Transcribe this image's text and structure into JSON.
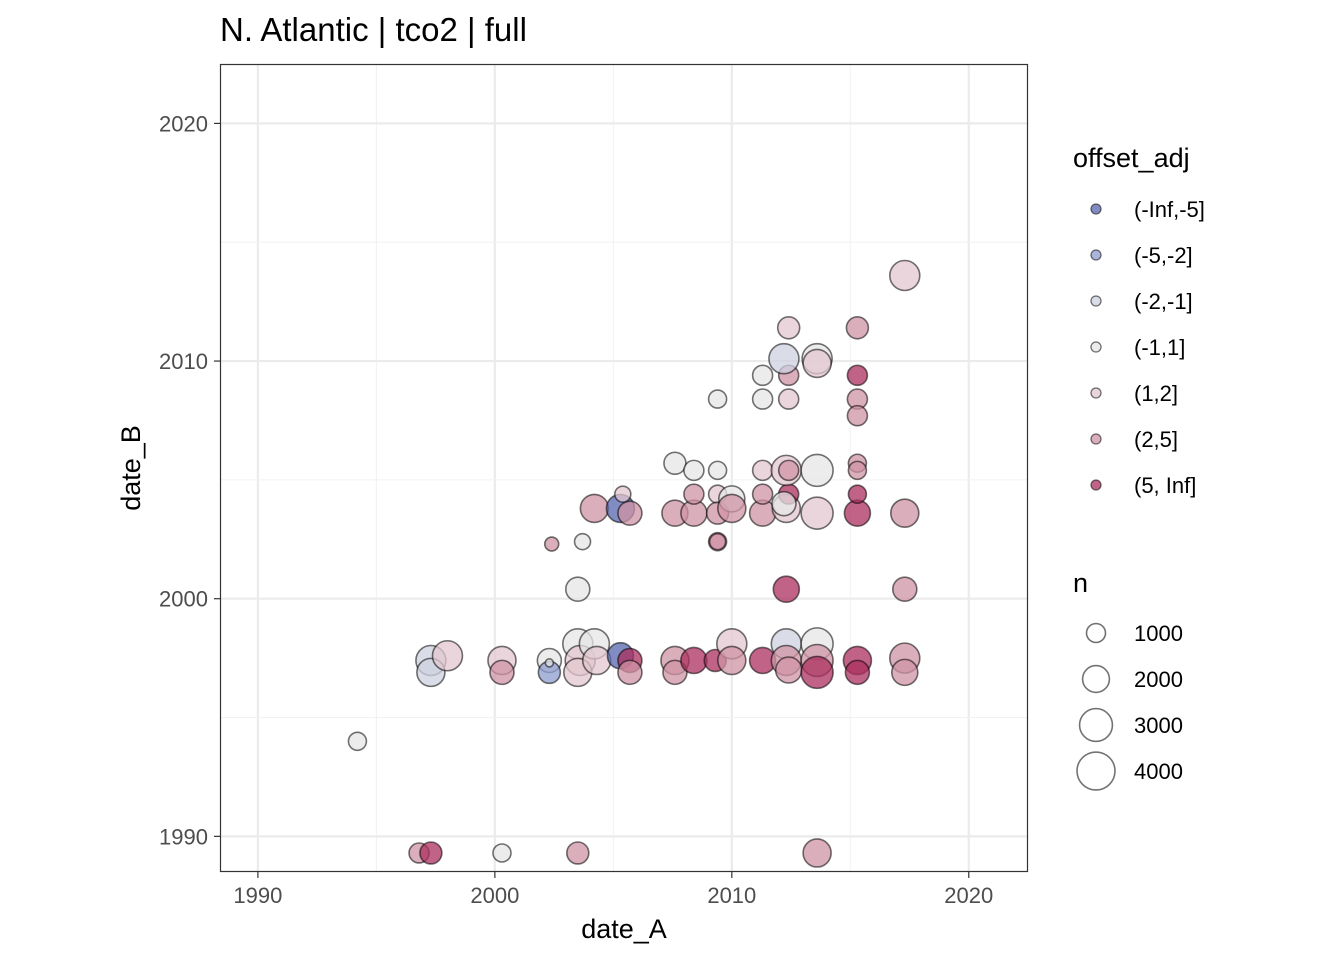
{
  "chart_data": {
    "type": "scatter",
    "title": "N. Atlantic | tco2 | full",
    "xlabel": "date_A",
    "ylabel": "date_B",
    "xlim": [
      1988.4,
      2022.5
    ],
    "ylim": [
      1988.5,
      2022.5
    ],
    "xticks": [
      1990,
      2000,
      2010,
      2020
    ],
    "yticks": [
      1990,
      2000,
      2010,
      2020
    ],
    "grid": true,
    "legend_position": "right",
    "color_legend": {
      "title": "offset_adj",
      "categories": [
        "(-Inf,-5]",
        "(-5,-2]",
        "(-2,-1]",
        "(-1,1]",
        "(1,2]",
        "(2,5]",
        "(5, Inf]"
      ],
      "colors": [
        "#5565ad",
        "#8d9ccf",
        "#cdd1e0",
        "#e6e6e6",
        "#e2c7cf",
        "#cf93a4",
        "#ab2f5e"
      ]
    },
    "size_legend": {
      "title": "n",
      "values": [
        1000,
        2000,
        3000,
        4000
      ]
    },
    "point_fields": [
      "date_A",
      "date_B",
      "n",
      "offset_adj_index"
    ],
    "points": [
      [
        1994.2,
        1994.0,
        900,
        3
      ],
      [
        1996.8,
        1989.3,
        1110,
        5
      ],
      [
        1997.3,
        1989.3,
        1340,
        6
      ],
      [
        2000.3,
        1989.3,
        900,
        3
      ],
      [
        2003.5,
        1989.3,
        1340,
        5
      ],
      [
        2013.6,
        1989.3,
        2180,
        5
      ],
      [
        1997.3,
        1997.4,
        2500,
        2
      ],
      [
        1997.3,
        1996.9,
        2180,
        2
      ],
      [
        1998.0,
        1997.6,
        2500,
        4
      ],
      [
        2000.3,
        1997.4,
        2180,
        4
      ],
      [
        2000.3,
        1996.9,
        1600,
        5
      ],
      [
        2002.3,
        1997.4,
        1600,
        3
      ],
      [
        2002.3,
        1996.9,
        1340,
        1
      ],
      [
        2002.3,
        1997.3,
        180,
        3
      ],
      [
        2003.5,
        1998.1,
        2500,
        3
      ],
      [
        2003.6,
        1997.4,
        2500,
        4
      ],
      [
        2003.5,
        1996.9,
        2180,
        4
      ],
      [
        2004.2,
        1998.1,
        2500,
        3
      ],
      [
        2004.3,
        1997.4,
        2180,
        4
      ],
      [
        2005.3,
        1997.6,
        1880,
        0
      ],
      [
        2005.7,
        1997.4,
        1600,
        6
      ],
      [
        2005.7,
        1996.9,
        1600,
        5
      ],
      [
        2003.5,
        2000.4,
        1600,
        3
      ],
      [
        2002.4,
        2002.3,
        540,
        5
      ],
      [
        2003.7,
        2002.4,
        710,
        3
      ],
      [
        2004.2,
        2003.8,
        2180,
        5
      ],
      [
        2005.3,
        2003.8,
        2180,
        0
      ],
      [
        2005.7,
        2003.6,
        1600,
        5
      ],
      [
        2005.4,
        2004.4,
        710,
        4
      ],
      [
        2007.6,
        1997.4,
        2180,
        5
      ],
      [
        2007.6,
        1996.9,
        1600,
        5
      ],
      [
        2008.4,
        1997.4,
        1880,
        6
      ],
      [
        2009.3,
        1997.4,
        1340,
        6
      ],
      [
        2010.0,
        1998.1,
        2500,
        4
      ],
      [
        2010.0,
        1997.4,
        2180,
        5
      ],
      [
        2011.3,
        1997.4,
        1880,
        6
      ],
      [
        2012.3,
        1998.1,
        2500,
        2
      ],
      [
        2012.3,
        1997.4,
        2500,
        5
      ],
      [
        2012.4,
        1997.0,
        1880,
        5
      ],
      [
        2013.6,
        1998.1,
        2840,
        3
      ],
      [
        2013.6,
        1997.4,
        2840,
        5
      ],
      [
        2013.6,
        1996.9,
        2840,
        6
      ],
      [
        2015.3,
        1997.4,
        2180,
        6
      ],
      [
        2015.3,
        1996.9,
        1600,
        6
      ],
      [
        2017.3,
        1997.5,
        2500,
        5
      ],
      [
        2017.3,
        1996.9,
        1880,
        5
      ],
      [
        2012.3,
        2000.4,
        1880,
        6
      ],
      [
        2017.3,
        2000.4,
        1600,
        5
      ],
      [
        2007.6,
        2003.6,
        1880,
        5
      ],
      [
        2008.4,
        2003.6,
        1880,
        5
      ],
      [
        2008.4,
        2004.4,
        1110,
        5
      ],
      [
        2009.4,
        2004.4,
        900,
        4
      ],
      [
        2009.4,
        2003.6,
        1340,
        5
      ],
      [
        2010.0,
        2004.2,
        1880,
        3
      ],
      [
        2010.0,
        2003.8,
        2180,
        5
      ],
      [
        2011.3,
        2003.6,
        1880,
        5
      ],
      [
        2011.3,
        2004.4,
        1110,
        5
      ],
      [
        2012.3,
        2003.8,
        2180,
        4
      ],
      [
        2012.4,
        2004.4,
        1110,
        6
      ],
      [
        2012.2,
        2004.0,
        1600,
        3
      ],
      [
        2013.6,
        2003.6,
        2840,
        4
      ],
      [
        2015.3,
        2003.6,
        1880,
        6
      ],
      [
        2015.3,
        2004.4,
        900,
        6
      ],
      [
        2017.3,
        2003.6,
        2180,
        5
      ],
      [
        2009.4,
        2002.4,
        900,
        5
      ],
      [
        2009.4,
        2002.4,
        710,
        5
      ],
      [
        2007.6,
        2005.7,
        1340,
        3
      ],
      [
        2008.4,
        2005.4,
        1110,
        3
      ],
      [
        2009.4,
        2005.4,
        900,
        3
      ],
      [
        2011.3,
        2005.4,
        1110,
        4
      ],
      [
        2012.3,
        2005.4,
        2500,
        4
      ],
      [
        2012.4,
        2005.4,
        1110,
        5
      ],
      [
        2013.6,
        2005.4,
        2840,
        3
      ],
      [
        2015.3,
        2005.7,
        900,
        5
      ],
      [
        2015.3,
        2005.4,
        900,
        5
      ],
      [
        2009.4,
        2008.4,
        900,
        3
      ],
      [
        2011.3,
        2008.4,
        1110,
        3
      ],
      [
        2012.4,
        2008.4,
        1110,
        4
      ],
      [
        2011.3,
        2009.4,
        1110,
        3
      ],
      [
        2012.4,
        2009.4,
        1110,
        5
      ],
      [
        2012.2,
        2010.1,
        2500,
        2
      ],
      [
        2013.6,
        2010.1,
        2500,
        3
      ],
      [
        2013.6,
        2009.9,
        2180,
        4
      ],
      [
        2015.3,
        2009.4,
        1110,
        6
      ],
      [
        2015.3,
        2008.4,
        1110,
        5
      ],
      [
        2015.3,
        2007.7,
        1110,
        5
      ],
      [
        2012.4,
        2011.4,
        1340,
        4
      ],
      [
        2015.3,
        2011.4,
        1340,
        5
      ],
      [
        2017.3,
        2013.6,
        2500,
        4
      ]
    ]
  }
}
